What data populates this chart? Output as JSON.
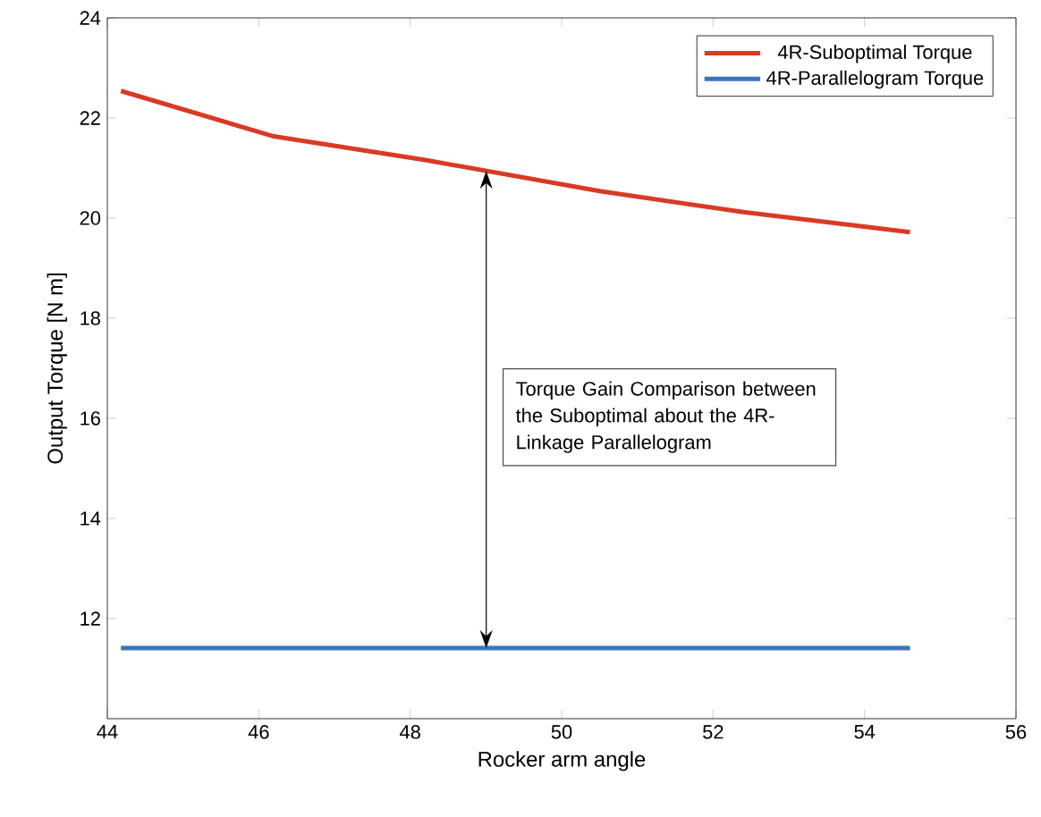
{
  "chart_data": {
    "type": "line",
    "xlabel": "Rocker arm angle",
    "ylabel": "Output Torque [N  m]",
    "xlim": [
      44,
      56
    ],
    "xticks": [
      44,
      46,
      48,
      50,
      52,
      54,
      56
    ],
    "ylim": [
      10,
      24
    ],
    "yticks": [
      12,
      14,
      16,
      18,
      20,
      22,
      24
    ],
    "legend": "top right",
    "grid": false,
    "marker": "none",
    "line_style": "solid",
    "series": [
      {
        "name": "4R-Suboptimal Torque",
        "color": "#d93a26",
        "x": [
          44.18,
          46.18,
          48.2,
          50.5,
          52.4,
          54.6
        ],
        "values": [
          22.54,
          21.64,
          21.16,
          20.54,
          20.12,
          19.72
        ]
      },
      {
        "name": "4R-Parallelogram Torque",
        "color": "#3a75b8",
        "x": [
          44.18,
          54.6
        ],
        "values": [
          11.41,
          11.41
        ]
      }
    ],
    "annotations": [
      "Torque Gain Comparison between the Suboptimal about the 4R-Linkage Parallelogram"
    ]
  }
}
